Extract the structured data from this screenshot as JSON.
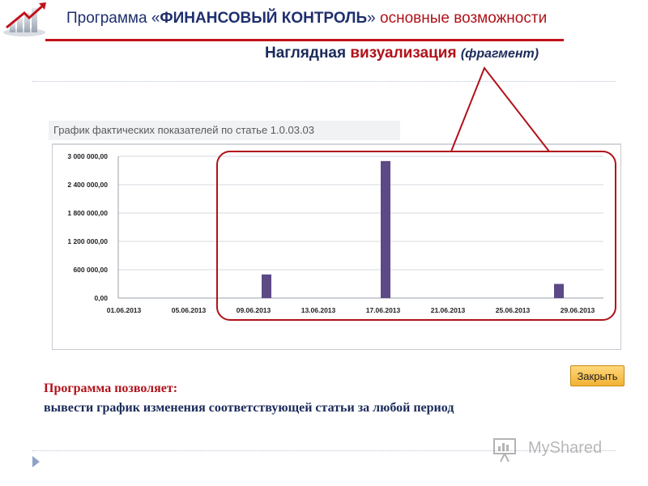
{
  "header": {
    "title_prefix": "Программа «",
    "title_bold": "ФИНАНСОВЫЙ КОНТРОЛЬ",
    "title_suffix": "»",
    "title_red": "основные возможности",
    "subtitle_main": "Наглядная",
    "subtitle_red": "визуализация",
    "subtitle_note": "(фрагмент)"
  },
  "colors": {
    "accent_red": "#b0121a",
    "navy": "#1b2b5a",
    "bar": "#5b4a86",
    "button": "#f2b233"
  },
  "chart_data": {
    "type": "bar",
    "title": "График фактических показателей по статье 1.0.03.03",
    "y_ticks": [
      "0,00",
      "600 000,00",
      "1 200 000,00",
      "1 800 000,00",
      "2 400 000,00",
      "3 000 000,00"
    ],
    "ylim": [
      0,
      3000000
    ],
    "x_ticks": [
      "01.06.2013",
      "05.06.2013",
      "09.06.2013",
      "13.06.2013",
      "17.06.2013",
      "21.06.2013",
      "25.06.2013",
      "29.06.2013"
    ],
    "bars": [
      {
        "date": "10.06.2013",
        "value": 500000
      },
      {
        "date": "17.06.2013",
        "value": 2900000
      },
      {
        "date": "28.06.2013",
        "value": 300000
      }
    ],
    "grid": true
  },
  "dialog": {
    "close_label": "Закрыть"
  },
  "description": {
    "label": "Программа позволяет:",
    "text": "вывести график изменения соответствующей статьи за любой период"
  },
  "watermark": {
    "text": "MyShared"
  }
}
